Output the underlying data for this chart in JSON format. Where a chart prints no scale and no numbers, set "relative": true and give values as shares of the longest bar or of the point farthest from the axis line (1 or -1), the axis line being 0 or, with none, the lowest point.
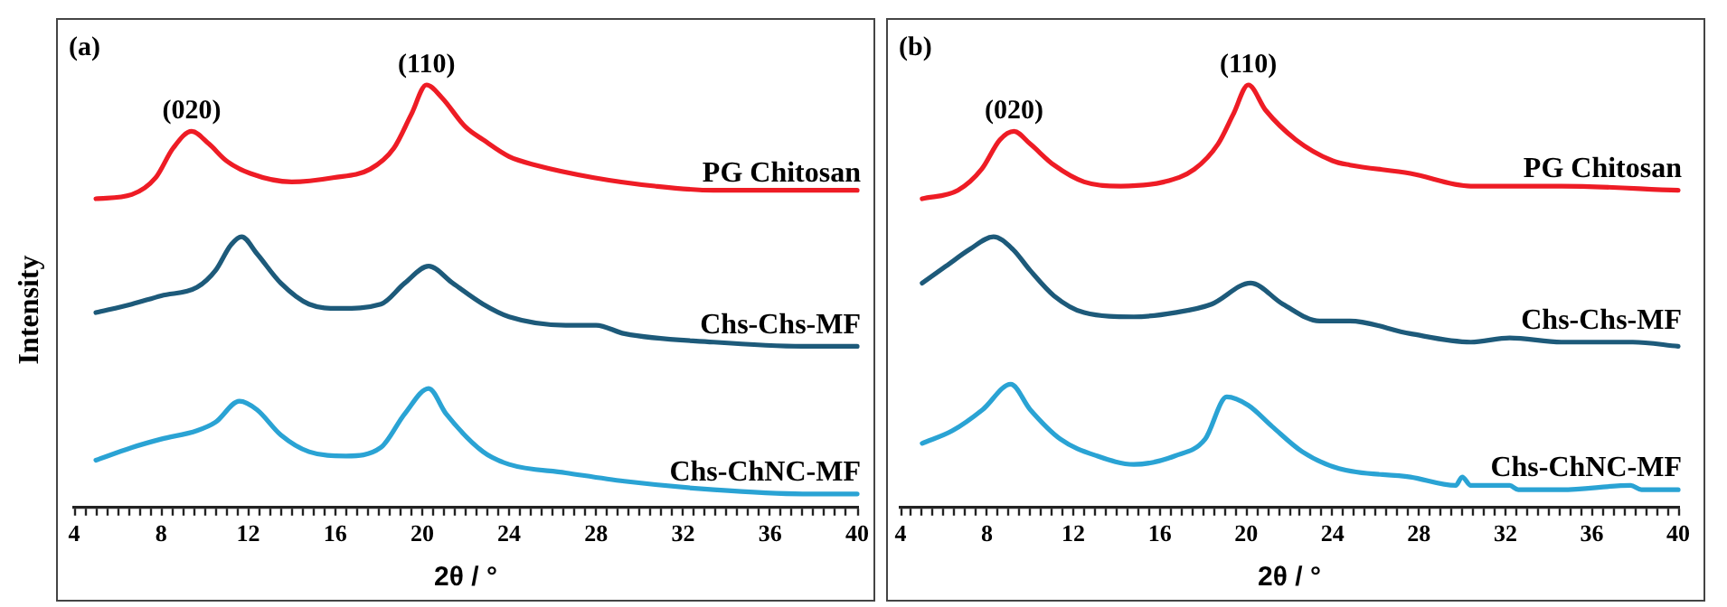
{
  "chart_data": [
    {
      "type": "line",
      "relative": true,
      "xlabel": "2θ / °",
      "ylabel": "Intensity",
      "xlim": [
        4,
        40
      ],
      "xticks": [
        4,
        {
          "value": 4.5,
          "label": null
        },
        {
          "value": 5,
          "label": null
        },
        {
          "value": 5.5,
          "label": null
        },
        {
          "value": 6,
          "label": null
        },
        {
          "value": 6.5,
          "label": null
        },
        {
          "value": 7,
          "label": null
        },
        {
          "value": 7.5,
          "label": null
        },
        8,
        {
          "value": 8.5,
          "label": null
        },
        {
          "value": 9,
          "label": null
        },
        {
          "value": 9.5,
          "label": null
        },
        {
          "value": 10,
          "label": null
        },
        {
          "value": 10.5,
          "label": null
        },
        {
          "value": 11,
          "label": null
        },
        {
          "value": 11.5,
          "label": null
        },
        12,
        {
          "value": 12.5,
          "label": null
        },
        {
          "value": 13,
          "label": null
        },
        {
          "value": 13.5,
          "label": null
        },
        {
          "value": 14,
          "label": null
        },
        {
          "value": 14.5,
          "label": null
        },
        {
          "value": 15,
          "label": null
        },
        {
          "value": 15.5,
          "label": null
        },
        16,
        {
          "value": 16.5,
          "label": null
        },
        {
          "value": 17,
          "label": null
        },
        {
          "value": 17.5,
          "label": null
        },
        {
          "value": 18,
          "label": null
        },
        {
          "value": 18.5,
          "label": null
        },
        {
          "value": 19,
          "label": null
        },
        {
          "value": 19.5,
          "label": null
        },
        20,
        {
          "value": 20.5,
          "label": null
        },
        {
          "value": 21,
          "label": null
        },
        {
          "value": 21.5,
          "label": null
        },
        {
          "value": 22,
          "label": null
        },
        {
          "value": 22.5,
          "label": null
        },
        {
          "value": 23,
          "label": null
        },
        {
          "value": 23.5,
          "label": null
        },
        24,
        {
          "value": 24.5,
          "label": null
        },
        {
          "value": 25,
          "label": null
        },
        {
          "value": 25.5,
          "label": null
        },
        {
          "value": 26,
          "label": null
        },
        {
          "value": 26.5,
          "label": null
        },
        {
          "value": 27,
          "label": null
        },
        {
          "value": 27.5,
          "label": null
        },
        28,
        {
          "value": 28.5,
          "label": null
        },
        {
          "value": 29,
          "label": null
        },
        {
          "value": 29.5,
          "label": null
        },
        {
          "value": 30,
          "label": null
        },
        {
          "value": 30.5,
          "label": null
        },
        {
          "value": 31,
          "label": null
        },
        {
          "value": 31.5,
          "label": null
        },
        32,
        {
          "value": 32.5,
          "label": null
        },
        {
          "value": 33,
          "label": null
        },
        {
          "value": 33.5,
          "label": null
        },
        {
          "value": 34,
          "label": null
        },
        {
          "value": 34.5,
          "label": null
        },
        {
          "value": 35,
          "label": null
        },
        {
          "value": 35.5,
          "label": null
        },
        36,
        {
          "value": 36.5,
          "label": null
        },
        {
          "value": 37,
          "label": null
        },
        {
          "value": 37.5,
          "label": null
        },
        {
          "value": 38,
          "label": null
        },
        {
          "value": 38.5,
          "label": null
        },
        {
          "value": 39,
          "label": null
        },
        {
          "value": 39.5,
          "label": null
        },
        40
      ],
      "marker": "none",
      "annotations": [
        "(a)",
        {
          "text": "(020)",
          "x": 9.4,
          "y": 0.89
        },
        {
          "text": "(110)",
          "x": 20.2,
          "y": 1
        }
      ],
      "series": [
        {
          "name": "PG Chitosan",
          "color": "#ee1c25",
          "x": [
            5,
            6.65,
            7.75,
            8.55,
            9.4,
            10.2,
            11,
            12.1,
            14,
            15.9,
            17.6,
            18.7,
            19.5,
            20.2,
            20.9,
            22,
            22.8,
            24,
            25.2,
            27.9,
            30.7,
            33.4,
            36.1,
            40
          ],
          "values": [
            0.73,
            0.74,
            0.78,
            0.85,
            0.89,
            0.86,
            0.82,
            0.79,
            0.77,
            0.78,
            0.8,
            0.85,
            0.93,
            1,
            0.97,
            0.9,
            0.87,
            0.83,
            0.81,
            0.78,
            0.76,
            0.75,
            0.75,
            0.75
          ]
        },
        {
          "name": "Chs-Chs-MF",
          "color": "#1d5a7a",
          "x": [
            5,
            6.65,
            8,
            9.65,
            10.5,
            11.2,
            11.7,
            12.4,
            13.5,
            14.8,
            16.2,
            18.1,
            19.2,
            20.3,
            21.4,
            22.8,
            24,
            26.6,
            28,
            29.3,
            33.4,
            37.5,
            40
          ],
          "values": [
            0.46,
            0.48,
            0.5,
            0.52,
            0.56,
            0.62,
            0.64,
            0.6,
            0.53,
            0.48,
            0.47,
            0.48,
            0.53,
            0.57,
            0.53,
            0.48,
            0.45,
            0.43,
            0.43,
            0.41,
            0.39,
            0.38,
            0.38
          ]
        },
        {
          "name": "Chs-ChNC-MF",
          "color": "#2aa3d4",
          "x": [
            5,
            6.65,
            8,
            9.65,
            10.5,
            11.6,
            12.4,
            13.5,
            14.8,
            16.5,
            18.1,
            19.2,
            20.3,
            21.1,
            22.8,
            24,
            26.6,
            29.3,
            33.4,
            37.5,
            40
          ],
          "values": [
            0.11,
            0.14,
            0.16,
            0.18,
            0.2,
            0.25,
            0.23,
            0.17,
            0.13,
            0.12,
            0.14,
            0.22,
            0.28,
            0.22,
            0.13,
            0.1,
            0.08,
            0.06,
            0.04,
            0.03,
            0.03
          ]
        }
      ]
    },
    {
      "type": "line",
      "relative": true,
      "xlabel": "2θ / °",
      "xlim": [
        4,
        40
      ],
      "xticks": [
        4,
        {
          "value": 4.5,
          "label": null
        },
        {
          "value": 5,
          "label": null
        },
        {
          "value": 5.5,
          "label": null
        },
        {
          "value": 6,
          "label": null
        },
        {
          "value": 6.5,
          "label": null
        },
        {
          "value": 7,
          "label": null
        },
        {
          "value": 7.5,
          "label": null
        },
        8,
        {
          "value": 8.5,
          "label": null
        },
        {
          "value": 9,
          "label": null
        },
        {
          "value": 9.5,
          "label": null
        },
        {
          "value": 10,
          "label": null
        },
        {
          "value": 10.5,
          "label": null
        },
        {
          "value": 11,
          "label": null
        },
        {
          "value": 11.5,
          "label": null
        },
        12,
        {
          "value": 12.5,
          "label": null
        },
        {
          "value": 13,
          "label": null
        },
        {
          "value": 13.5,
          "label": null
        },
        {
          "value": 14,
          "label": null
        },
        {
          "value": 14.5,
          "label": null
        },
        {
          "value": 15,
          "label": null
        },
        {
          "value": 15.5,
          "label": null
        },
        16,
        {
          "value": 16.5,
          "label": null
        },
        {
          "value": 17,
          "label": null
        },
        {
          "value": 17.5,
          "label": null
        },
        {
          "value": 18,
          "label": null
        },
        {
          "value": 18.5,
          "label": null
        },
        {
          "value": 19,
          "label": null
        },
        {
          "value": 19.5,
          "label": null
        },
        20,
        {
          "value": 20.5,
          "label": null
        },
        {
          "value": 21,
          "label": null
        },
        {
          "value": 21.5,
          "label": null
        },
        {
          "value": 22,
          "label": null
        },
        {
          "value": 22.5,
          "label": null
        },
        {
          "value": 23,
          "label": null
        },
        {
          "value": 23.5,
          "label": null
        },
        24,
        {
          "value": 24.5,
          "label": null
        },
        {
          "value": 25,
          "label": null
        },
        {
          "value": 25.5,
          "label": null
        },
        {
          "value": 26,
          "label": null
        },
        {
          "value": 26.5,
          "label": null
        },
        {
          "value": 27,
          "label": null
        },
        {
          "value": 27.5,
          "label": null
        },
        28,
        {
          "value": 28.5,
          "label": null
        },
        {
          "value": 29,
          "label": null
        },
        {
          "value": 29.5,
          "label": null
        },
        {
          "value": 30,
          "label": null
        },
        {
          "value": 30.5,
          "label": null
        },
        {
          "value": 31,
          "label": null
        },
        {
          "value": 31.5,
          "label": null
        },
        32,
        {
          "value": 32.5,
          "label": null
        },
        {
          "value": 33,
          "label": null
        },
        {
          "value": 33.5,
          "label": null
        },
        {
          "value": 34,
          "label": null
        },
        {
          "value": 34.5,
          "label": null
        },
        {
          "value": 35,
          "label": null
        },
        {
          "value": 35.5,
          "label": null
        },
        36,
        {
          "value": 36.5,
          "label": null
        },
        {
          "value": 37,
          "label": null
        },
        {
          "value": 37.5,
          "label": null
        },
        {
          "value": 38,
          "label": null
        },
        {
          "value": 38.5,
          "label": null
        },
        {
          "value": 39,
          "label": null
        },
        {
          "value": 39.5,
          "label": null
        },
        40
      ],
      "marker": "none",
      "annotations": [
        "(b)",
        {
          "text": "(020)",
          "x": 9.25,
          "y": 0.89
        },
        {
          "text": "(110)",
          "x": 20.1,
          "y": 1
        }
      ],
      "series": [
        {
          "name": "PG Chitosan",
          "color": "#ee1c25",
          "x": [
            5,
            6.65,
            7.75,
            8.6,
            9.25,
            10,
            11.1,
            12.5,
            14.2,
            16.2,
            17.6,
            18.7,
            19.4,
            20.1,
            20.9,
            22.3,
            24,
            24.8,
            27.6,
            30.4,
            34.6,
            40
          ],
          "values": [
            0.73,
            0.75,
            0.8,
            0.87,
            0.89,
            0.86,
            0.81,
            0.77,
            0.76,
            0.77,
            0.8,
            0.86,
            0.93,
            1,
            0.94,
            0.87,
            0.82,
            0.81,
            0.79,
            0.76,
            0.76,
            0.75
          ]
        },
        {
          "name": "Chs-Chs-MF",
          "color": "#1d5a7a",
          "x": [
            5,
            6.1,
            7.2,
            8.3,
            9.2,
            10,
            11.1,
            12.5,
            14.8,
            16.7,
            18.4,
            20.2,
            21.7,
            23.4,
            24.8,
            27.6,
            30.4,
            32.2,
            34.6,
            37.9,
            40
          ],
          "values": [
            0.53,
            0.57,
            0.61,
            0.64,
            0.61,
            0.56,
            0.5,
            0.46,
            0.45,
            0.46,
            0.48,
            0.53,
            0.48,
            0.44,
            0.44,
            0.41,
            0.39,
            0.4,
            0.39,
            0.39,
            0.38
          ]
        },
        {
          "name": "Chs-ChNC-MF",
          "color": "#2aa3d4",
          "x": [
            5,
            6.4,
            7.8,
            9.1,
            10,
            11.4,
            13.1,
            14.8,
            16.7,
            18.1,
            19.1,
            20.1,
            21.2,
            22.6,
            24.3,
            27.6,
            29.7,
            30,
            30.4,
            32.2,
            32.6,
            34.6,
            37.8,
            38.3,
            40
          ],
          "values": [
            0.15,
            0.18,
            0.23,
            0.29,
            0.23,
            0.16,
            0.12,
            0.1,
            0.12,
            0.16,
            0.26,
            0.24,
            0.19,
            0.13,
            0.09,
            0.07,
            0.05,
            0.07,
            0.05,
            0.05,
            0.04,
            0.04,
            0.05,
            0.04,
            0.04
          ]
        }
      ]
    }
  ]
}
